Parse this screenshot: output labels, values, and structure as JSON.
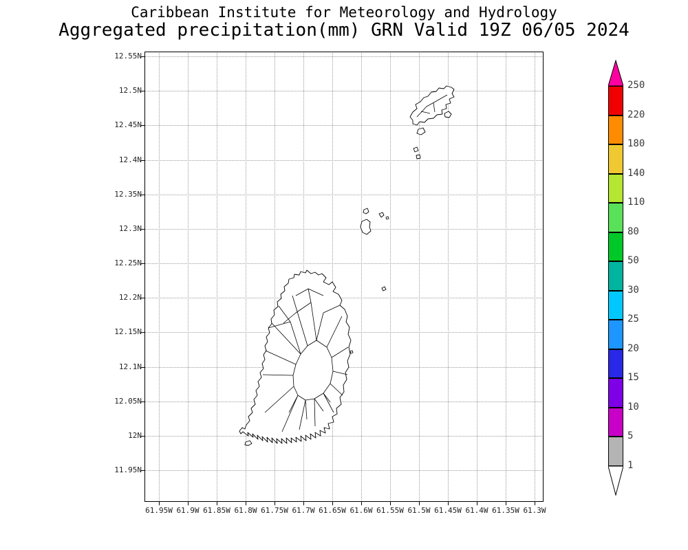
{
  "header": {
    "line1": "Caribbean Institute for Meteorology and Hydrology",
    "line2": "Aggregated precipitation(mm) GRN Valid 19Z 06/05 2024"
  },
  "map": {
    "lat_ticks": [
      "12.55N",
      "12.5N",
      "12.45N",
      "12.4N",
      "12.35N",
      "12.3N",
      "12.25N",
      "12.2N",
      "12.15N",
      "12.1N",
      "12.05N",
      "12N",
      "11.95N"
    ],
    "lon_ticks": [
      "61.95W",
      "61.9W",
      "61.85W",
      "61.8W",
      "61.75W",
      "61.7W",
      "61.65W",
      "61.6W",
      "61.55W",
      "61.5W",
      "61.45W",
      "61.4W",
      "61.35W",
      "61.3W"
    ]
  },
  "colorbar": {
    "levels": [
      "1",
      "5",
      "10",
      "15",
      "20",
      "25",
      "30",
      "50",
      "80",
      "110",
      "140",
      "180",
      "220",
      "250"
    ],
    "segment_colors": [
      "#b4b4b4",
      "#c800c8",
      "#7d00e6",
      "#2828e6",
      "#1e96ff",
      "#00c8ff",
      "#00b4a0",
      "#00c828",
      "#5ae15a",
      "#b4e632",
      "#f0c832",
      "#ff8c00",
      "#f00000"
    ],
    "below_color": "#ffffff",
    "above_color": "#ff00a0"
  }
}
